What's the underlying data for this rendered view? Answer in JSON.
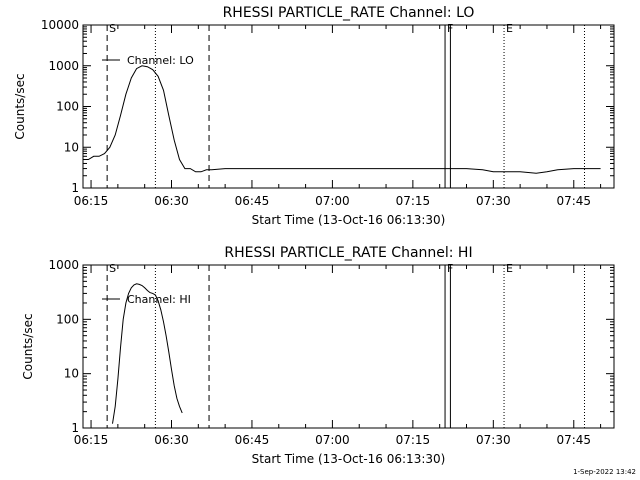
{
  "chart_data": [
    {
      "type": "line",
      "title": "RHESSI PARTICLE_RATE Channel: LO",
      "xlabel": "Start Time (13-Oct-16 06:13:30)",
      "ylabel": "Counts/sec",
      "yscale": "log",
      "xlim": [
        "06:13:30",
        "07:52:30"
      ],
      "ylim": [
        1,
        10000
      ],
      "x_ticks": [
        "06:15",
        "06:30",
        "06:45",
        "07:00",
        "07:15",
        "07:30",
        "07:45"
      ],
      "y_ticks": [
        "1",
        "10",
        "100",
        "1000",
        "10000"
      ],
      "legend": "Channel: LO",
      "markers": {
        "S": "06:18",
        "F": "07:21",
        "E": "07:32",
        "dashed_lines": [
          "06:18",
          "06:37"
        ],
        "dotted_lines": [
          "06:27",
          "07:32",
          "07:47"
        ],
        "solid_lines": [
          "07:21",
          "07:22"
        ]
      },
      "series": [
        {
          "x": [
            "06:13:30",
            "06:14:30",
            "06:15:30",
            "06:16:30",
            "06:17:30",
            "06:18:30",
            "06:19:30",
            "06:20:30",
            "06:21:30",
            "06:22:30",
            "06:23:30",
            "06:24:30",
            "06:25:30",
            "06:26:30",
            "06:27:30",
            "06:28:30",
            "06:29:30",
            "06:30:30",
            "06:31:30",
            "06:32:30",
            "06:33:30",
            "06:34:30",
            "06:35:30",
            "06:36:30",
            "06:37:30",
            "06:40",
            "06:45",
            "06:50",
            "06:55",
            "07:00",
            "07:05",
            "07:10",
            "07:15",
            "07:20",
            "07:25",
            "07:28",
            "07:30",
            "07:32",
            "07:35",
            "07:38",
            "07:40",
            "07:42",
            "07:45",
            "07:47",
            "07:48",
            "07:49",
            "07:50"
          ],
          "y": [
            5,
            5,
            6,
            6,
            7,
            10,
            20,
            60,
            200,
            500,
            850,
            1000,
            950,
            800,
            550,
            250,
            60,
            15,
            5,
            3,
            3,
            2.5,
            2.5,
            2.8,
            2.8,
            3,
            3,
            3,
            3,
            3,
            3,
            3,
            3,
            3,
            3,
            2.8,
            2.5,
            2.5,
            2.5,
            2.3,
            2.5,
            2.8,
            3,
            3,
            3,
            3,
            3
          ]
        }
      ]
    },
    {
      "type": "line",
      "title": "RHESSI PARTICLE_RATE Channel: HI",
      "xlabel": "Start Time (13-Oct-16 06:13:30)",
      "ylabel": "Counts/sec",
      "yscale": "log",
      "xlim": [
        "06:13:30",
        "07:52:30"
      ],
      "ylim": [
        1,
        1000
      ],
      "x_ticks": [
        "06:15",
        "06:30",
        "06:45",
        "07:00",
        "07:15",
        "07:30",
        "07:45"
      ],
      "y_ticks": [
        "1",
        "10",
        "100",
        "1000"
      ],
      "legend": "Channel: HI",
      "markers": {
        "S": "06:18",
        "F": "07:21",
        "E": "07:32",
        "dashed_lines": [
          "06:18",
          "06:37"
        ],
        "dotted_lines": [
          "06:27",
          "07:32",
          "07:47"
        ],
        "solid_lines": [
          "07:21",
          "07:22"
        ]
      },
      "series": [
        {
          "x": [
            "06:19:00",
            "06:19:30",
            "06:20:00",
            "06:20:30",
            "06:21:00",
            "06:21:30",
            "06:22:00",
            "06:22:30",
            "06:23:00",
            "06:23:30",
            "06:24:00",
            "06:24:30",
            "06:25:00",
            "06:25:30",
            "06:26:00",
            "06:26:30",
            "06:27:00",
            "06:27:30",
            "06:28:00",
            "06:28:30",
            "06:29:00",
            "06:29:30",
            "06:30:00",
            "06:30:30",
            "06:31:00",
            "06:31:30",
            "06:32:00"
          ],
          "y": [
            1.2,
            2.5,
            8,
            30,
            100,
            200,
            300,
            380,
            430,
            450,
            440,
            420,
            380,
            340,
            310,
            300,
            280,
            220,
            150,
            90,
            50,
            25,
            12,
            6,
            3.5,
            2.5,
            1.9
          ]
        }
      ]
    }
  ],
  "footer": {
    "timestamp": "1-Sep-2022 13:42"
  }
}
